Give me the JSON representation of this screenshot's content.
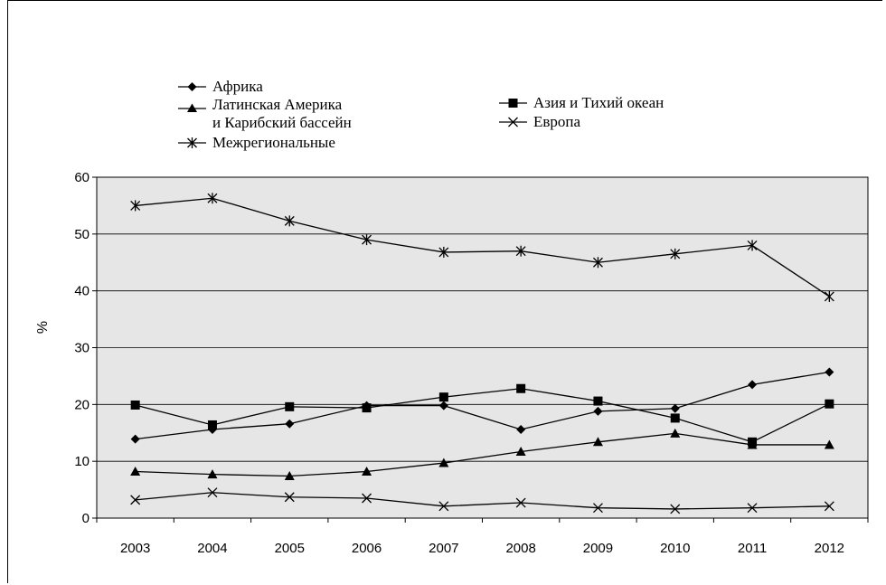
{
  "chart_data": {
    "type": "line",
    "title": "",
    "xlabel": "",
    "ylabel": "%",
    "ylim": [
      0,
      60
    ],
    "yticks": [
      "0",
      "10",
      "20",
      "30",
      "40",
      "50",
      "60"
    ],
    "categories": [
      "2003",
      "2004",
      "2005",
      "2006",
      "2007",
      "2008",
      "2009",
      "2010",
      "2011",
      "2012"
    ],
    "grid": "horizontal",
    "legend_position": "top",
    "series": [
      {
        "name": "Африка",
        "marker": "diamond",
        "values": [
          13.9,
          15.6,
          16.6,
          19.8,
          19.8,
          15.6,
          18.8,
          19.3,
          23.5,
          25.7
        ]
      },
      {
        "name": "Азия и Тихий океан",
        "marker": "square",
        "values": [
          19.9,
          16.4,
          19.6,
          19.4,
          21.3,
          22.8,
          20.6,
          17.6,
          13.4,
          20.1
        ]
      },
      {
        "name": "Латинская Америка и Карибский бассейн",
        "marker": "triangle",
        "values": [
          8.2,
          7.7,
          7.4,
          8.2,
          9.7,
          11.7,
          13.4,
          14.9,
          12.9,
          12.9
        ]
      },
      {
        "name": "Европа",
        "marker": "x",
        "values": [
          3.2,
          4.5,
          3.7,
          3.5,
          2.1,
          2.7,
          1.8,
          1.6,
          1.8,
          2.1
        ]
      },
      {
        "name": "Межрегиональные",
        "marker": "asterisk",
        "values": [
          55.0,
          56.3,
          52.3,
          49.0,
          46.8,
          47.0,
          45.0,
          46.5,
          48.0,
          39.0
        ]
      }
    ],
    "legend": {
      "africa": "Африка",
      "latin_line1": "Латинская Америка",
      "latin_line2": "и Карибский бассейн",
      "interregional": "Межрегиональные",
      "asia": "Азия и Тихий океан",
      "europe": "Европа"
    },
    "colors": {
      "plot_bg": "#e6e6e6",
      "line": "#000000",
      "grid": "#000000"
    }
  }
}
